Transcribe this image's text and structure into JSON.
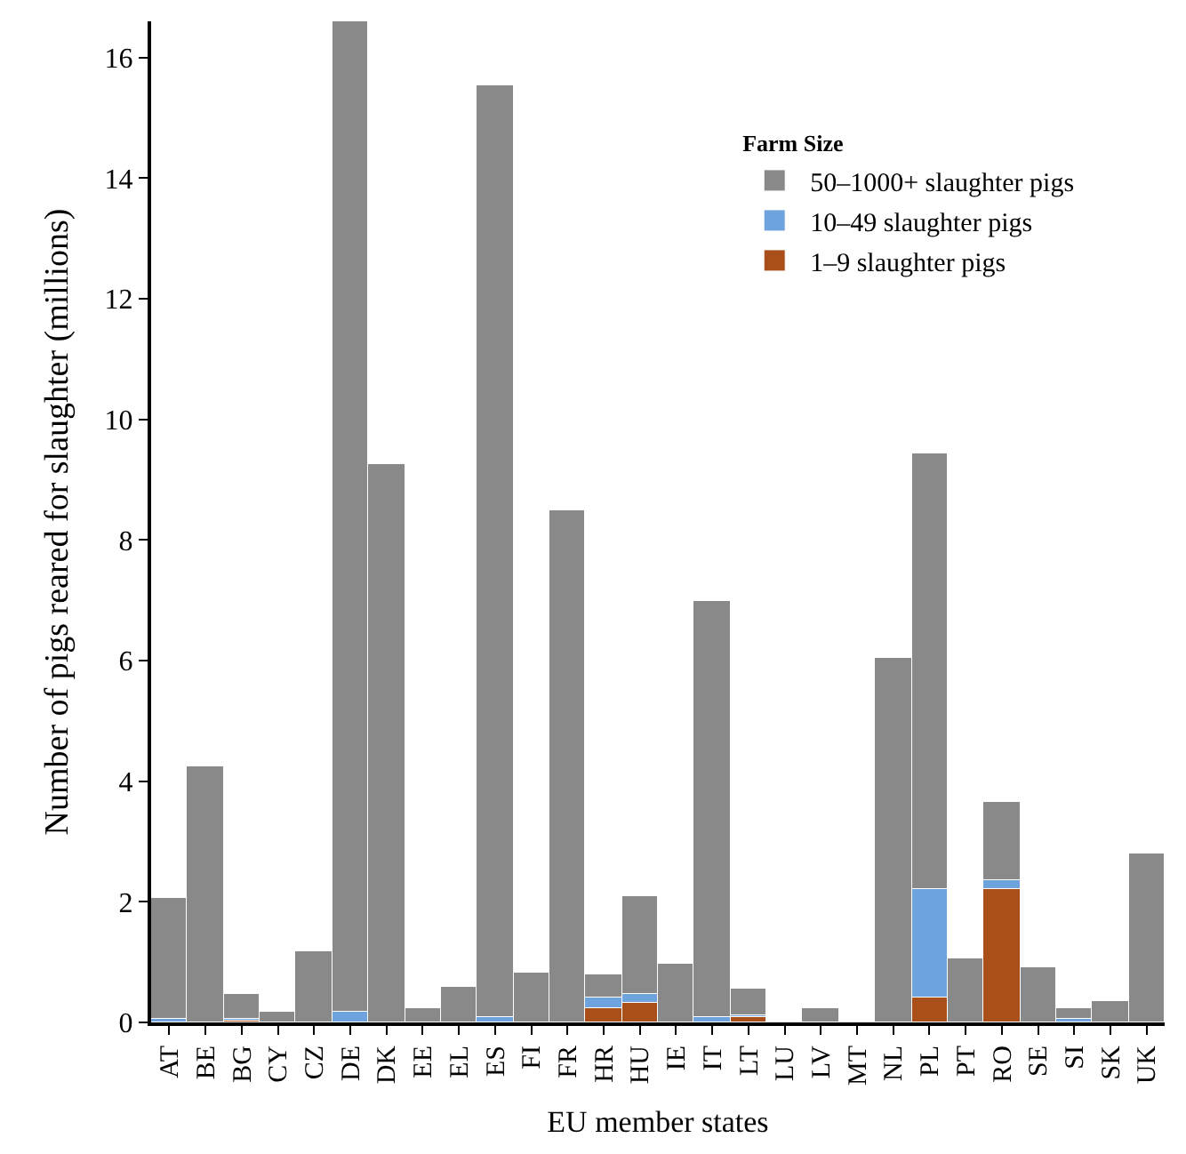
{
  "chart_data": {
    "type": "bar",
    "stacked": true,
    "xlabel": "EU member states",
    "ylabel": "Number of pigs reared for slaughter (millions)",
    "legend_title": "Farm Size",
    "legend": "top right",
    "categories": [
      "AT",
      "BE",
      "BG",
      "CY",
      "CZ",
      "DE",
      "DK",
      "EE",
      "EL",
      "ES",
      "FI",
      "FR",
      "HR",
      "HU",
      "IE",
      "IT",
      "LT",
      "LU",
      "LV",
      "MT",
      "NL",
      "PL",
      "PT",
      "RO",
      "SE",
      "SI",
      "SK",
      "UK"
    ],
    "series": [
      {
        "name": "1–9 slaughter pigs",
        "color": "#a94f1a",
        "values": [
          null,
          null,
          0.03,
          null,
          null,
          null,
          null,
          null,
          null,
          null,
          null,
          null,
          0.25,
          0.32,
          null,
          null,
          0.08,
          null,
          null,
          null,
          null,
          0.42,
          null,
          2.22,
          null,
          null,
          null,
          null
        ]
      },
      {
        "name": "10–49 slaughter pigs",
        "color": "#6fa3dd",
        "values": [
          0.05,
          null,
          0.03,
          null,
          null,
          0.18,
          null,
          null,
          null,
          0.1,
          null,
          null,
          0.15,
          0.15,
          null,
          0.08,
          0.05,
          null,
          null,
          null,
          null,
          1.8,
          null,
          0.15,
          null,
          0.05,
          null,
          null
        ]
      },
      {
        "name": "50–1000+ slaughter pigs",
        "color": "#898989",
        "values": [
          2.02,
          4.25,
          0.41,
          0.18,
          1.18,
          16.42,
          9.25,
          0.25,
          0.58,
          15.45,
          0.82,
          8.5,
          0.4,
          1.63,
          0.97,
          6.92,
          0.44,
          null,
          0.25,
          null,
          6.05,
          7.23,
          1.07,
          1.28,
          0.92,
          0.2,
          0.35,
          2.8
        ]
      }
    ],
    "ylim": [
      0,
      16.6
    ],
    "yticks": [
      0,
      2,
      4,
      6,
      8,
      10,
      12,
      14,
      16
    ]
  }
}
